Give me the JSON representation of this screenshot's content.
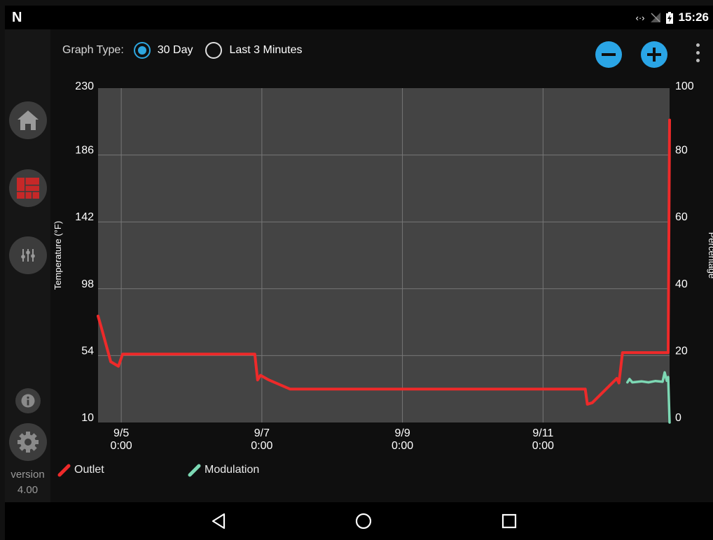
{
  "status_bar": {
    "logo": "N",
    "icons": [
      "code-arrows-icon",
      "no-signal-icon",
      "battery-charging-icon"
    ],
    "time": "15:26"
  },
  "sidebar": {
    "items": [
      {
        "name": "home",
        "icon": "home-icon"
      },
      {
        "name": "dashboard",
        "icon": "dashboard-grid-icon",
        "active": true
      },
      {
        "name": "settings-sliders",
        "icon": "sliders-icon"
      }
    ],
    "info_icon": "info-icon",
    "settings_icon": "gear-icon",
    "version_label": "version",
    "version_number": "4.00"
  },
  "graph_type": {
    "label": "Graph Type:",
    "options": [
      {
        "label": "30 Day",
        "selected": true
      },
      {
        "label": "Last 3 Minutes",
        "selected": false
      }
    ]
  },
  "toolbar": {
    "zoom_out_icon": "minus-circle-icon",
    "zoom_in_icon": "plus-circle-icon",
    "menu_icon": "more-vert-icon"
  },
  "chart_data": {
    "type": "line",
    "ylabel": "Temperature (°F)",
    "ylabel_right": "Percentage",
    "ylim": [
      10,
      230
    ],
    "ylim_right": [
      0,
      100
    ],
    "y_ticks": [
      "230",
      "186",
      "142",
      "98",
      "54",
      "10"
    ],
    "y_ticks_right": [
      "100",
      "80",
      "60",
      "40",
      "20",
      "0"
    ],
    "x_range": [
      4.67,
      12.8
    ],
    "x_ticks": [
      {
        "x": 5,
        "label_top": "9/5",
        "label_bottom": "0:00"
      },
      {
        "x": 7,
        "label_top": "9/7",
        "label_bottom": "0:00"
      },
      {
        "x": 9,
        "label_top": "9/9",
        "label_bottom": "0:00"
      },
      {
        "x": 11,
        "label_top": "9/11",
        "label_bottom": "0:00"
      }
    ],
    "grid": true,
    "legend_placement": "bottom-left",
    "series": [
      {
        "name": "Outlet",
        "color": "#ee2a2a",
        "axis": "left",
        "points": [
          [
            4.67,
            80
          ],
          [
            4.72,
            72
          ],
          [
            4.85,
            50
          ],
          [
            4.96,
            47
          ],
          [
            5.02,
            55
          ],
          [
            5.05,
            55
          ],
          [
            6.9,
            55
          ],
          [
            6.94,
            38
          ],
          [
            6.98,
            41
          ],
          [
            7.02,
            40
          ],
          [
            7.1,
            38
          ],
          [
            7.4,
            32
          ],
          [
            11.6,
            32
          ],
          [
            11.63,
            22
          ],
          [
            11.7,
            23
          ],
          [
            12.05,
            39
          ],
          [
            12.08,
            36
          ],
          [
            12.13,
            56
          ],
          [
            12.78,
            56
          ],
          [
            12.8,
            209
          ]
        ]
      },
      {
        "name": "Modulation",
        "color": "#7dd8b4",
        "axis": "right",
        "points": [
          [
            12.2,
            12
          ],
          [
            12.23,
            13
          ],
          [
            12.27,
            12
          ],
          [
            12.4,
            12.3
          ],
          [
            12.5,
            12
          ],
          [
            12.6,
            12.4
          ],
          [
            12.7,
            12.2
          ],
          [
            12.73,
            15
          ],
          [
            12.76,
            12.5
          ],
          [
            12.78,
            13.6
          ],
          [
            12.8,
            0
          ]
        ]
      }
    ]
  },
  "navigation": {
    "back_icon": "back-triangle-icon",
    "home_icon": "home-circle-icon",
    "recents_icon": "recents-square-icon"
  }
}
